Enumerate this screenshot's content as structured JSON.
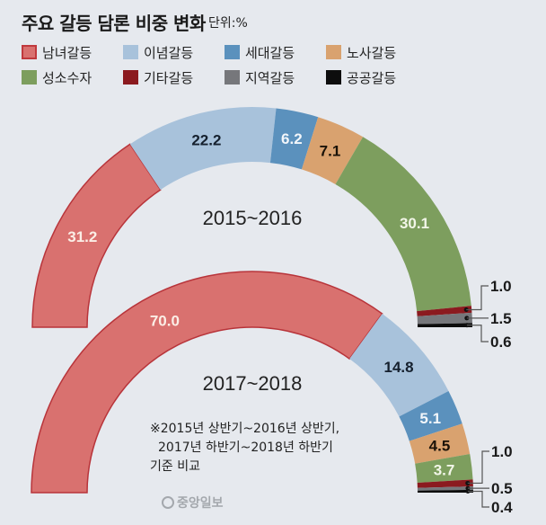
{
  "title": "주요 갈등 담론 비중 변화",
  "unit": "단위:%",
  "note_lines": [
    "※2015년 상반기~2016년 상반기,",
    "  2017년 하반기~2018년 하반기",
    "기준 비교"
  ],
  "source": "중앙일보",
  "chart_data": {
    "type": "pie",
    "subtype": "half-donut",
    "title": "주요 갈등 담론 비중 변화",
    "unit": "%",
    "categories": [
      "남녀갈등",
      "이념갈등",
      "세대갈등",
      "노사갈등",
      "성소수자",
      "기타갈등",
      "지역갈등",
      "공공갈등"
    ],
    "colors": [
      "#d9716f",
      "#a8c2db",
      "#5b91bd",
      "#d9a26f",
      "#7d9e5e",
      "#8b1a1f",
      "#76777b",
      "#0d0d0d"
    ],
    "label_colors": [
      "#fbeee6",
      "#15202e",
      "#f2f6fa",
      "#1a1208",
      "#f2f6e8",
      "#1a1a1a",
      "#1a1a1a",
      "#1a1a1a"
    ],
    "legend_position": "top",
    "series": [
      {
        "name": "2015~2016",
        "values": [
          31.2,
          22.2,
          6.2,
          7.1,
          30.1,
          1.0,
          1.5,
          0.6
        ]
      },
      {
        "name": "2017~2018",
        "values": [
          70.0,
          14.8,
          5.1,
          4.5,
          3.7,
          1.0,
          0.5,
          0.4
        ]
      }
    ]
  }
}
